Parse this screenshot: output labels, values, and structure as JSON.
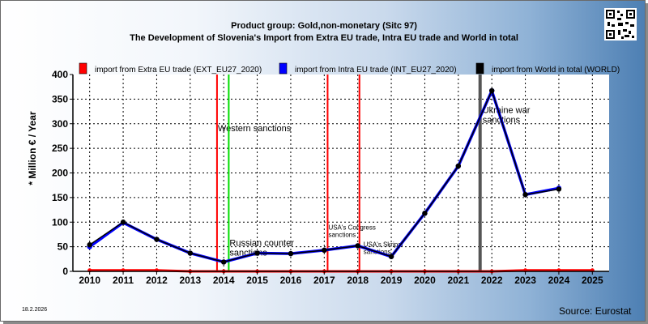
{
  "header": {
    "title_line1": "Product group: Gold,non-monetary (Sitc 97)",
    "title_line2": "The Development of Slovenia's Import from Extra EU trade, Intra EU trade and World in total"
  },
  "footer": {
    "date": "18.2.2026",
    "source": "Source: Eurostat"
  },
  "qr_code_icon": "qr-code-icon",
  "chart_data": {
    "type": "line",
    "ylabel": "* Million € / Year",
    "xlim": [
      2009.5,
      2025.5
    ],
    "ylim": [
      0,
      400
    ],
    "yticks": [
      0,
      50,
      100,
      150,
      200,
      250,
      300,
      350,
      400
    ],
    "x": [
      2010,
      2011,
      2012,
      2013,
      2014,
      2015,
      2016,
      2017,
      2018,
      2019,
      2020,
      2021,
      2022,
      2023,
      2024,
      2025
    ],
    "grid": true,
    "legend_position": "top",
    "series": [
      {
        "name": "import from Extra EU trade (EXT_EU27_2020)",
        "color": "#ff0000",
        "x": [
          2010,
          2011,
          2012,
          2013,
          2014,
          2015,
          2016,
          2017,
          2018,
          2019,
          2020,
          2021,
          2022,
          2023,
          2024,
          2025
        ],
        "values": [
          2,
          2,
          2,
          0,
          0,
          0,
          0,
          0,
          0,
          0,
          0,
          0,
          0,
          2,
          2,
          2
        ]
      },
      {
        "name": "import from Intra EU trade (INT_EU27_2020)",
        "color": "#0000ff",
        "x": [
          2010,
          2011,
          2012,
          2013,
          2014,
          2015,
          2016,
          2017,
          2018,
          2019,
          2020,
          2021,
          2022,
          2023,
          2024
        ],
        "values": [
          50,
          99,
          65,
          37,
          19,
          37,
          36,
          43,
          52,
          30,
          118,
          214,
          367,
          156,
          169
        ]
      },
      {
        "name": "import from World in total (WORLD)",
        "color": "#000000",
        "x": [
          2010,
          2011,
          2012,
          2013,
          2014,
          2015,
          2016,
          2017,
          2018,
          2019,
          2020,
          2021,
          2022,
          2023,
          2024
        ],
        "values": [
          54,
          100,
          65,
          37,
          19,
          37,
          36,
          43,
          52,
          30,
          118,
          214,
          367,
          156,
          167
        ]
      }
    ],
    "events": [
      {
        "x": 2013.8,
        "color": "#ff0000",
        "label": "Western sanctions",
        "label_y": 285,
        "label_dx": 0
      },
      {
        "x": 2014.15,
        "color": "#00dd00",
        "label": "Russian counter sanctions",
        "label_y": 52,
        "label_dx": 0
      },
      {
        "x": 2017.1,
        "color": "#ff0000",
        "label": "USA's Congress sanctions",
        "label_y": 85,
        "label_dx": 0,
        "small": true
      },
      {
        "x": 2018.05,
        "color": "#ff0000",
        "label": "USA's Skripal sanctions",
        "label_y": 50,
        "label_dx": 4,
        "small": true
      },
      {
        "x": 2021.65,
        "color": "#555555",
        "label": "Ukraine war sanctions",
        "label_y": 322,
        "label_dx": 2
      }
    ]
  }
}
